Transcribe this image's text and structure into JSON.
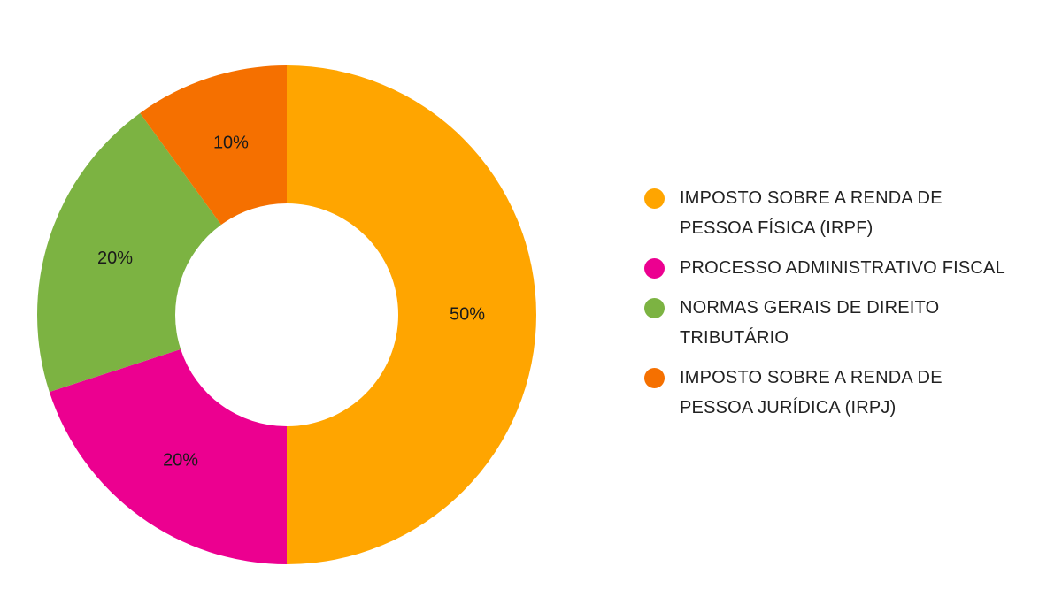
{
  "chart_data": {
    "type": "pie",
    "donut": true,
    "categories": [
      "IMPOSTO SOBRE A RENDA DE PESSOA FÍSICA (IRPF)",
      "PROCESSO ADMINISTRATIVO FISCAL",
      "NORMAS GERAIS DE DIREITO TRIBUTÁRIO",
      "IMPOSTO SOBRE A RENDA DE PESSOA JURÍDICA (IRPJ)"
    ],
    "values": [
      50,
      20,
      20,
      10
    ],
    "data_labels": [
      "50%",
      "20%",
      "20%",
      "10%"
    ],
    "colors": [
      "#FFA500",
      "#EC0090",
      "#7CB342",
      "#F57000"
    ],
    "legend_position": "right",
    "start_angle": "top",
    "direction": "clockwise",
    "title": ""
  }
}
